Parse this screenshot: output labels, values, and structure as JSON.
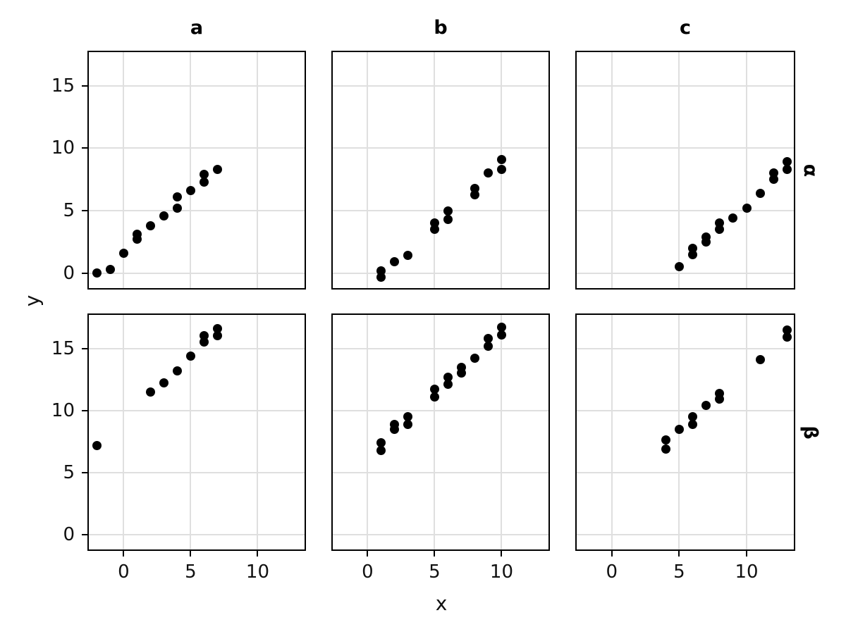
{
  "chart_data": {
    "type": "scatter",
    "title": "",
    "xlabel": "x",
    "ylabel": "y",
    "facet_columns": [
      "a",
      "b",
      "c"
    ],
    "facet_rows": [
      "α",
      "β"
    ],
    "x_ticks": [
      0,
      5,
      10
    ],
    "y_ticks": [
      0,
      5,
      10,
      15
    ],
    "xlim": [
      -2.6,
      13.5
    ],
    "ylim": [
      -1.2,
      17.7
    ],
    "grid": "major-only",
    "legend": "none",
    "point_color": "#000000",
    "grid_color": "#DFDFDF",
    "border_color": "#000000",
    "text_color": "#111111",
    "background_color": "#FFFFFF",
    "panels": [
      {
        "column": "a",
        "row": "α",
        "points": [
          [
            -2,
            0.0
          ],
          [
            -1,
            0.3
          ],
          [
            0,
            1.6
          ],
          [
            1,
            2.7
          ],
          [
            1,
            3.1
          ],
          [
            2,
            3.8
          ],
          [
            3,
            4.6
          ],
          [
            4,
            5.2
          ],
          [
            4,
            6.1
          ],
          [
            5,
            6.6
          ],
          [
            6,
            7.3
          ],
          [
            6,
            7.9
          ],
          [
            7,
            8.3
          ]
        ]
      },
      {
        "column": "b",
        "row": "α",
        "points": [
          [
            1,
            -0.3
          ],
          [
            1,
            0.2
          ],
          [
            2,
            0.9
          ],
          [
            3,
            1.4
          ],
          [
            5,
            3.5
          ],
          [
            5,
            4.0
          ],
          [
            6,
            4.3
          ],
          [
            6,
            5.0
          ],
          [
            8,
            6.3
          ],
          [
            8,
            6.8
          ],
          [
            9,
            8.0
          ],
          [
            10,
            8.3
          ],
          [
            10,
            9.1
          ]
        ]
      },
      {
        "column": "c",
        "row": "α",
        "points": [
          [
            5,
            0.5
          ],
          [
            6,
            1.5
          ],
          [
            6,
            2.0
          ],
          [
            7,
            2.5
          ],
          [
            7,
            2.9
          ],
          [
            8,
            3.5
          ],
          [
            8,
            4.0
          ],
          [
            9,
            4.4
          ],
          [
            10,
            5.2
          ],
          [
            11,
            6.4
          ],
          [
            12,
            7.5
          ],
          [
            12,
            8.0
          ],
          [
            13,
            8.3
          ],
          [
            13,
            8.9
          ]
        ]
      },
      {
        "column": "a",
        "row": "β",
        "points": [
          [
            -2,
            7.2
          ],
          [
            2,
            11.5
          ],
          [
            3,
            12.2
          ],
          [
            4,
            13.2
          ],
          [
            5,
            14.4
          ],
          [
            6,
            15.5
          ],
          [
            6,
            16.0
          ],
          [
            7,
            16.0
          ],
          [
            7,
            16.6
          ]
        ]
      },
      {
        "column": "b",
        "row": "β",
        "points": [
          [
            1,
            6.8
          ],
          [
            1,
            7.4
          ],
          [
            2,
            8.5
          ],
          [
            2,
            8.9
          ],
          [
            3,
            8.9
          ],
          [
            3,
            9.5
          ],
          [
            5,
            11.1
          ],
          [
            5,
            11.7
          ],
          [
            6,
            12.1
          ],
          [
            6,
            12.7
          ],
          [
            7,
            13.0
          ],
          [
            7,
            13.5
          ],
          [
            8,
            14.2
          ],
          [
            9,
            15.2
          ],
          [
            9,
            15.8
          ],
          [
            10,
            16.1
          ],
          [
            10,
            16.7
          ]
        ]
      },
      {
        "column": "c",
        "row": "β",
        "points": [
          [
            4,
            6.9
          ],
          [
            4,
            7.6
          ],
          [
            5,
            8.5
          ],
          [
            6,
            8.9
          ],
          [
            6,
            9.5
          ],
          [
            7,
            10.4
          ],
          [
            8,
            10.9
          ],
          [
            8,
            11.4
          ],
          [
            11,
            14.1
          ],
          [
            13,
            15.9
          ],
          [
            13,
            16.5
          ]
        ]
      }
    ]
  }
}
